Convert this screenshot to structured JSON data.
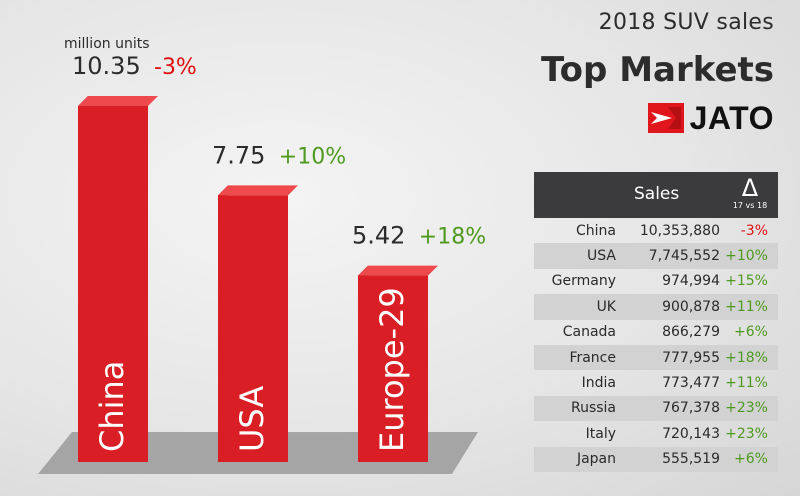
{
  "chart_data": {
    "type": "bar",
    "title": "2018 SUV sales",
    "subtitle": "Top Markets",
    "unit_label": "million units",
    "categories": [
      "China",
      "USA",
      "Europe-29"
    ],
    "values": [
      10.35,
      7.75,
      5.42
    ],
    "value_labels": [
      "10.35",
      "7.75",
      "5.42"
    ],
    "changes": [
      "-3%",
      "+10%",
      "+18%"
    ],
    "ylim": [
      0,
      10.35
    ],
    "grid": false,
    "colors": {
      "bar_front": "#d91f25",
      "bar_side": "#8e1015",
      "bar_top": "#ee4a4e",
      "positive": "#4e9a1f",
      "negative": "#e01010"
    }
  },
  "brand": {
    "name": "JATO"
  },
  "table": {
    "header_sales": "Sales",
    "header_delta_symbol": "Δ",
    "header_delta_sub": "17 vs 18",
    "rows": [
      {
        "country": "China",
        "sales": "10,353,880",
        "change": "-3%"
      },
      {
        "country": "USA",
        "sales": "7,745,552",
        "change": "+10%"
      },
      {
        "country": "Germany",
        "sales": "974,994",
        "change": "+15%"
      },
      {
        "country": "UK",
        "sales": "900,878",
        "change": "+11%"
      },
      {
        "country": "Canada",
        "sales": "866,279",
        "change": "+6%"
      },
      {
        "country": "France",
        "sales": "777,955",
        "change": "+18%"
      },
      {
        "country": "India",
        "sales": "773,477",
        "change": "+11%"
      },
      {
        "country": "Russia",
        "sales": "767,378",
        "change": "+23%"
      },
      {
        "country": "Italy",
        "sales": "720,143",
        "change": "+23%"
      },
      {
        "country": "Japan",
        "sales": "555,519",
        "change": "+6%"
      }
    ]
  }
}
